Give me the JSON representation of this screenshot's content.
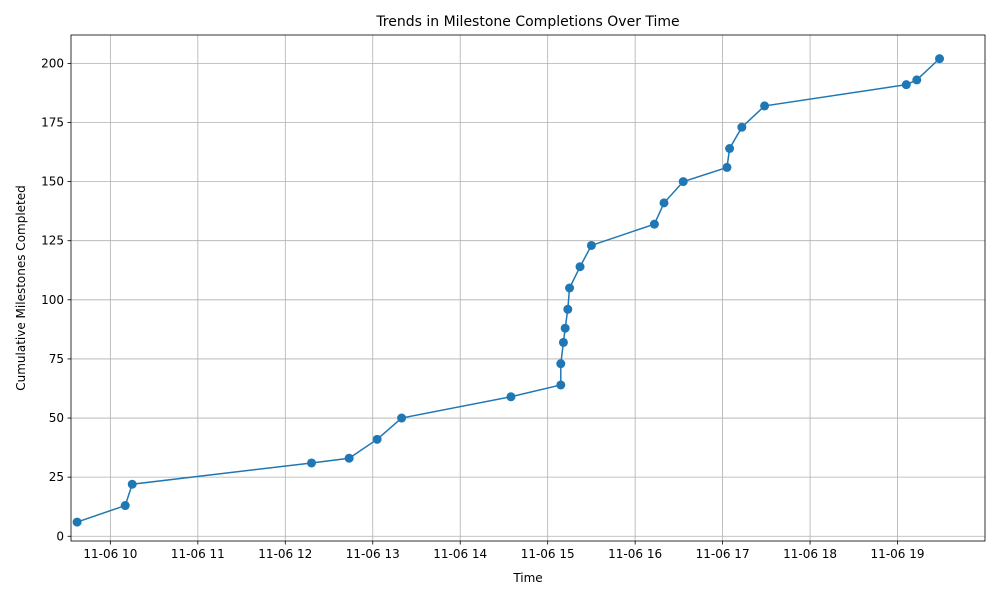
{
  "chart_data": {
    "type": "line",
    "title": "Trends in Milestone Completions Over Time",
    "xlabel": "Time",
    "ylabel": "Cumulative Milestones Completed",
    "x_unit": "hours of day 11-06",
    "xlim": [
      9.55,
      20.0
    ],
    "ylim": [
      -2,
      212
    ],
    "x_ticks": [
      {
        "value": 10,
        "label": "11-06 10"
      },
      {
        "value": 11,
        "label": "11-06 11"
      },
      {
        "value": 12,
        "label": "11-06 12"
      },
      {
        "value": 13,
        "label": "11-06 13"
      },
      {
        "value": 14,
        "label": "11-06 14"
      },
      {
        "value": 15,
        "label": "11-06 15"
      },
      {
        "value": 16,
        "label": "11-06 16"
      },
      {
        "value": 17,
        "label": "11-06 17"
      },
      {
        "value": 18,
        "label": "11-06 18"
      },
      {
        "value": 19,
        "label": "11-06 19"
      }
    ],
    "y_ticks": [
      0,
      25,
      50,
      75,
      100,
      125,
      150,
      175,
      200
    ],
    "grid": true,
    "color": "#1f77b4",
    "marker": "circle",
    "series": [
      {
        "name": "",
        "points": [
          {
            "x": 9.62,
            "y": 6
          },
          {
            "x": 10.17,
            "y": 13
          },
          {
            "x": 10.25,
            "y": 22
          },
          {
            "x": 12.3,
            "y": 31
          },
          {
            "x": 12.73,
            "y": 33
          },
          {
            "x": 13.05,
            "y": 41
          },
          {
            "x": 13.33,
            "y": 50
          },
          {
            "x": 14.58,
            "y": 59
          },
          {
            "x": 15.15,
            "y": 64
          },
          {
            "x": 15.15,
            "y": 73
          },
          {
            "x": 15.18,
            "y": 82
          },
          {
            "x": 15.2,
            "y": 88
          },
          {
            "x": 15.23,
            "y": 96
          },
          {
            "x": 15.25,
            "y": 105
          },
          {
            "x": 15.37,
            "y": 114
          },
          {
            "x": 15.5,
            "y": 123
          },
          {
            "x": 16.22,
            "y": 132
          },
          {
            "x": 16.33,
            "y": 141
          },
          {
            "x": 16.55,
            "y": 150
          },
          {
            "x": 17.05,
            "y": 156
          },
          {
            "x": 17.08,
            "y": 164
          },
          {
            "x": 17.22,
            "y": 173
          },
          {
            "x": 17.48,
            "y": 182
          },
          {
            "x": 19.1,
            "y": 191
          },
          {
            "x": 19.22,
            "y": 193
          },
          {
            "x": 19.48,
            "y": 202
          }
        ]
      }
    ]
  }
}
